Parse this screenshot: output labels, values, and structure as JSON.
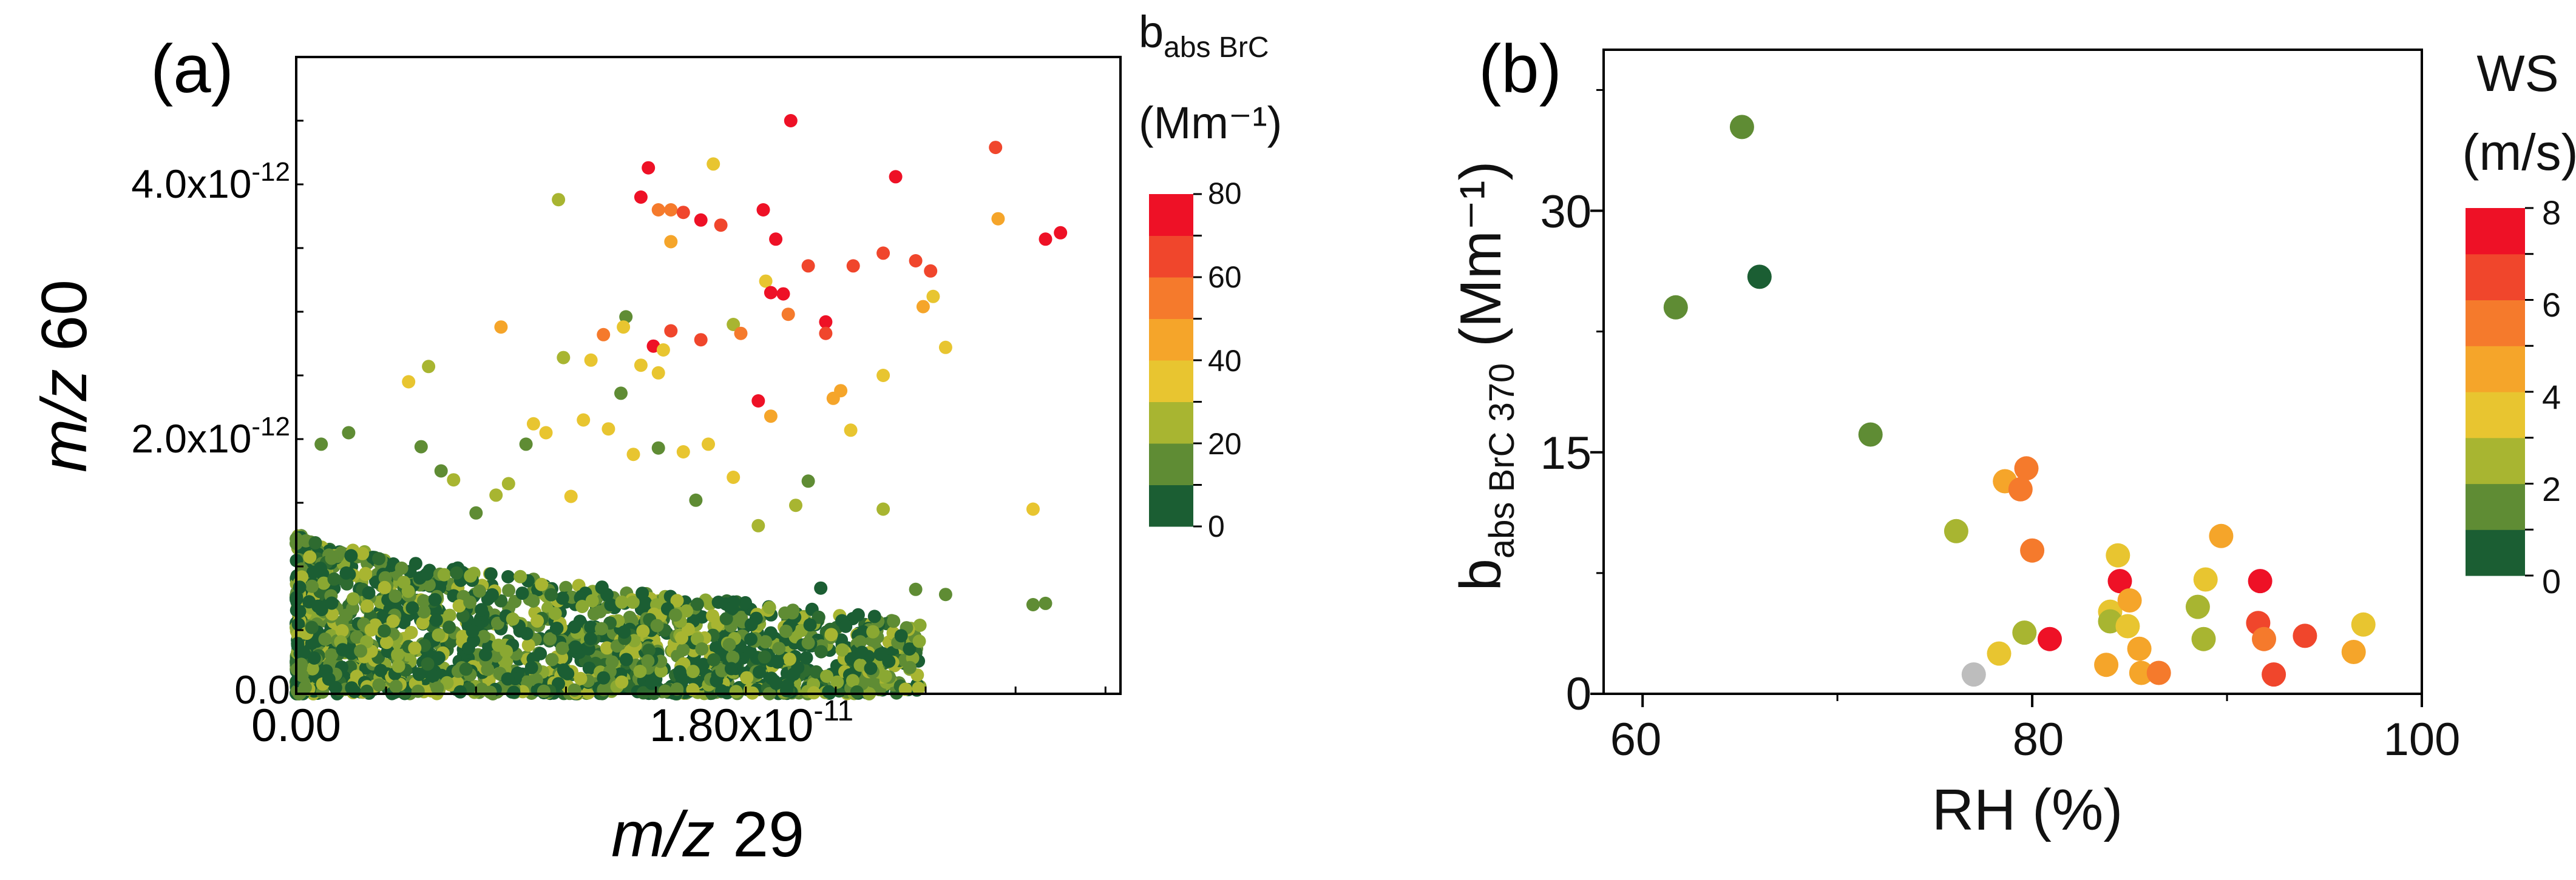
{
  "chart_data": [
    {
      "type": "scatter",
      "panel_label": "(a)",
      "xlabel": {
        "italic": "m/z",
        "rest": " 29"
      },
      "ylabel": {
        "italic": "m/z",
        "rest": " 60"
      },
      "xlim": [
        0,
        3.3e-11
      ],
      "ylim": [
        0,
        5e-12
      ],
      "xticks": [
        {
          "value": 0,
          "label": "0.00",
          "exp": ""
        },
        {
          "value": 1.8e-11,
          "label": "1.80x10",
          "exp": "-11"
        }
      ],
      "yticks": [
        {
          "value": 0,
          "label": "0.0",
          "exp": ""
        },
        {
          "value": 2e-12,
          "label": "2.0x10",
          "exp": "-12"
        },
        {
          "value": 4e-12,
          "label": "4.0x10",
          "exp": "-12"
        }
      ],
      "colorbar": {
        "title": "b",
        "title_sub": "abs BrC",
        "unit": "(Mm⁻¹)",
        "min": 0,
        "max": 80,
        "ticks": [
          "80",
          "60",
          "40",
          "20",
          "0"
        ],
        "levels": [
          "#1b5e33",
          "#5f8c34",
          "#a8b531",
          "#e8c530",
          "#f5a52a",
          "#f57a2c",
          "#f0462c",
          "#ee1126"
        ]
      },
      "dense_cluster": {
        "note": "approximately 1800 overlapping points concentrated near the origin",
        "n": 1800,
        "x_range": [
          0,
          2.5e-11
        ],
        "y_range": [
          0,
          1.3e-12
        ]
      },
      "points": [
        {
          "x": 1.98e-11,
          "y": 4.5e-12,
          "c": 70
        },
        {
          "x": 1.41e-11,
          "y": 4.13e-12,
          "c": 75
        },
        {
          "x": 1.67e-11,
          "y": 4.16e-12,
          "c": 35
        },
        {
          "x": 2.4e-11,
          "y": 4.06e-12,
          "c": 78
        },
        {
          "x": 2.8e-11,
          "y": 4.29e-12,
          "c": 60
        },
        {
          "x": 1.38e-11,
          "y": 3.9e-12,
          "c": 72
        },
        {
          "x": 1.05e-11,
          "y": 3.88e-12,
          "c": 20
        },
        {
          "x": 1.45e-11,
          "y": 3.8e-12,
          "c": 55
        },
        {
          "x": 1.5e-11,
          "y": 3.8e-12,
          "c": 55
        },
        {
          "x": 1.55e-11,
          "y": 3.78e-12,
          "c": 65
        },
        {
          "x": 1.62e-11,
          "y": 3.72e-12,
          "c": 70
        },
        {
          "x": 1.7e-11,
          "y": 3.68e-12,
          "c": 65
        },
        {
          "x": 1.87e-11,
          "y": 3.8e-12,
          "c": 72
        },
        {
          "x": 1.5e-11,
          "y": 3.55e-12,
          "c": 40
        },
        {
          "x": 1.92e-11,
          "y": 3.57e-12,
          "c": 75
        },
        {
          "x": 2.05e-11,
          "y": 3.36e-12,
          "c": 60
        },
        {
          "x": 2.23e-11,
          "y": 3.36e-12,
          "c": 65
        },
        {
          "x": 2.35e-11,
          "y": 3.46e-12,
          "c": 65
        },
        {
          "x": 2.48e-11,
          "y": 3.4e-12,
          "c": 65
        },
        {
          "x": 2.54e-11,
          "y": 3.32e-12,
          "c": 62
        },
        {
          "x": 2.81e-11,
          "y": 3.73e-12,
          "c": 45
        },
        {
          "x": 3e-11,
          "y": 3.57e-12,
          "c": 70
        },
        {
          "x": 3.06e-11,
          "y": 3.62e-12,
          "c": 75
        },
        {
          "x": 1.88e-11,
          "y": 3.24e-12,
          "c": 35
        },
        {
          "x": 1.9e-11,
          "y": 3.15e-12,
          "c": 70
        },
        {
          "x": 1.95e-11,
          "y": 3.14e-12,
          "c": 75
        },
        {
          "x": 2.55e-11,
          "y": 3.12e-12,
          "c": 30
        },
        {
          "x": 2.51e-11,
          "y": 3.04e-12,
          "c": 40
        },
        {
          "x": 1.97e-11,
          "y": 2.98e-12,
          "c": 55
        },
        {
          "x": 2.12e-11,
          "y": 2.92e-12,
          "c": 70
        },
        {
          "x": 2.12e-11,
          "y": 2.83e-12,
          "c": 65
        },
        {
          "x": 2.6e-11,
          "y": 2.72e-12,
          "c": 38
        },
        {
          "x": 1.32e-11,
          "y": 2.96e-12,
          "c": 10
        },
        {
          "x": 1.31e-11,
          "y": 2.88e-12,
          "c": 30
        },
        {
          "x": 1.23e-11,
          "y": 2.82e-12,
          "c": 55
        },
        {
          "x": 1.5e-11,
          "y": 2.85e-12,
          "c": 60
        },
        {
          "x": 1.62e-11,
          "y": 2.78e-12,
          "c": 65
        },
        {
          "x": 1.75e-11,
          "y": 2.9e-12,
          "c": 25
        },
        {
          "x": 1.78e-11,
          "y": 2.83e-12,
          "c": 50
        },
        {
          "x": 1.07e-11,
          "y": 2.64e-12,
          "c": 20
        },
        {
          "x": 1.18e-11,
          "y": 2.62e-12,
          "c": 30
        },
        {
          "x": 1.43e-11,
          "y": 2.73e-12,
          "c": 75
        },
        {
          "x": 1.47e-11,
          "y": 2.7e-12,
          "c": 38
        },
        {
          "x": 1.38e-11,
          "y": 2.58e-12,
          "c": 38
        },
        {
          "x": 1.45e-11,
          "y": 2.52e-12,
          "c": 30
        },
        {
          "x": 8.2e-12,
          "y": 2.88e-12,
          "c": 40
        },
        {
          "x": 2.35e-11,
          "y": 2.5e-12,
          "c": 30
        },
        {
          "x": 2.18e-11,
          "y": 2.38e-12,
          "c": 40
        },
        {
          "x": 1e-12,
          "y": 1.96e-12,
          "c": 15
        },
        {
          "x": 2.1e-12,
          "y": 2.05e-12,
          "c": 12
        },
        {
          "x": 4.5e-12,
          "y": 2.45e-12,
          "c": 35
        },
        {
          "x": 5e-12,
          "y": 1.94e-12,
          "c": 15
        },
        {
          "x": 5.3e-12,
          "y": 2.57e-12,
          "c": 20
        },
        {
          "x": 5.8e-12,
          "y": 1.75e-12,
          "c": 12
        },
        {
          "x": 6.3e-12,
          "y": 1.68e-12,
          "c": 20
        },
        {
          "x": 8e-12,
          "y": 1.56e-12,
          "c": 20
        },
        {
          "x": 9.2e-12,
          "y": 1.96e-12,
          "c": 12
        },
        {
          "x": 9.5e-12,
          "y": 2.12e-12,
          "c": 35
        },
        {
          "x": 1e-11,
          "y": 2.05e-12,
          "c": 30
        },
        {
          "x": 1.15e-11,
          "y": 2.15e-12,
          "c": 30
        },
        {
          "x": 1.25e-11,
          "y": 2.08e-12,
          "c": 30
        },
        {
          "x": 1.3e-11,
          "y": 2.36e-12,
          "c": 10
        },
        {
          "x": 1.35e-11,
          "y": 1.88e-12,
          "c": 32
        },
        {
          "x": 1.45e-11,
          "y": 1.93e-12,
          "c": 15
        },
        {
          "x": 1.55e-11,
          "y": 1.9e-12,
          "c": 38
        },
        {
          "x": 1.65e-11,
          "y": 1.96e-12,
          "c": 32
        },
        {
          "x": 1.75e-11,
          "y": 1.7e-12,
          "c": 35
        },
        {
          "x": 1.85e-11,
          "y": 2.3e-12,
          "c": 70
        },
        {
          "x": 1.9e-11,
          "y": 2.18e-12,
          "c": 40
        },
        {
          "x": 2.15e-11,
          "y": 2.32e-12,
          "c": 40
        },
        {
          "x": 2.22e-11,
          "y": 2.07e-12,
          "c": 35
        },
        {
          "x": 2.05e-11,
          "y": 1.67e-12,
          "c": 12
        },
        {
          "x": 2e-11,
          "y": 1.48e-12,
          "c": 25
        },
        {
          "x": 1.6e-11,
          "y": 1.52e-12,
          "c": 15
        },
        {
          "x": 1.1e-11,
          "y": 1.55e-12,
          "c": 35
        },
        {
          "x": 8.5e-12,
          "y": 1.65e-12,
          "c": 25
        },
        {
          "x": 7.2e-12,
          "y": 1.42e-12,
          "c": 15
        },
        {
          "x": 1.85e-11,
          "y": 1.32e-12,
          "c": 25
        },
        {
          "x": 2.35e-11,
          "y": 1.45e-12,
          "c": 20
        },
        {
          "x": 2.95e-11,
          "y": 1.45e-12,
          "c": 30
        },
        {
          "x": 3e-11,
          "y": 7.1e-13,
          "c": 12
        },
        {
          "x": 2.95e-11,
          "y": 7e-13,
          "c": 12
        },
        {
          "x": 2.6e-11,
          "y": 7.8e-13,
          "c": 12
        },
        {
          "x": 2.48e-11,
          "y": 8.2e-13,
          "c": 10
        },
        {
          "x": 2.1e-11,
          "y": 8.3e-13,
          "c": 8
        },
        {
          "x": 2.2e-11,
          "y": 5.3e-13,
          "c": 5
        },
        {
          "x": 2.3e-11,
          "y": 2e-13,
          "c": 5
        },
        {
          "x": 2.05e-11,
          "y": 4e-13,
          "c": 12
        },
        {
          "x": 2.25e-11,
          "y": 6.2e-13,
          "c": 8
        }
      ]
    },
    {
      "type": "scatter",
      "panel_label": "(b)",
      "xlabel": "RH (%)",
      "ylabel": {
        "base": "b",
        "sub": "abs BrC 370",
        "unit": " (Mm⁻¹)"
      },
      "xlim": [
        58,
        100
      ],
      "ylim": [
        0,
        40
      ],
      "xticks": [
        {
          "value": 60,
          "label": "60"
        },
        {
          "value": 80,
          "label": "80"
        },
        {
          "value": 100,
          "label": "100"
        }
      ],
      "yticks": [
        {
          "value": 0,
          "label": "0"
        },
        {
          "value": 15,
          "label": "15"
        },
        {
          "value": 30,
          "label": "30"
        }
      ],
      "colorbar": {
        "title": "WS",
        "unit": "(m/s)",
        "min": 0,
        "max": 8,
        "ticks": [
          "8",
          "6",
          "4",
          "2",
          "0"
        ],
        "levels": [
          "#1b5e33",
          "#5f8c34",
          "#a8b531",
          "#e8c530",
          "#f5a52a",
          "#f57a2c",
          "#f0462c",
          "#ee1126"
        ]
      },
      "points": [
        {
          "x": 65.1,
          "y": 35.2,
          "c": 1.5
        },
        {
          "x": 61.7,
          "y": 24.0,
          "c": 1.4
        },
        {
          "x": 66.0,
          "y": 25.9,
          "c": 0.4
        },
        {
          "x": 71.7,
          "y": 16.1,
          "c": 1.4
        },
        {
          "x": 76.1,
          "y": 10.1,
          "c": 2.6
        },
        {
          "x": 78.6,
          "y": 13.2,
          "c": 4.6
        },
        {
          "x": 79.4,
          "y": 12.7,
          "c": 5.6
        },
        {
          "x": 79.7,
          "y": 14.0,
          "c": 5.6
        },
        {
          "x": 80.0,
          "y": 8.9,
          "c": 5.3
        },
        {
          "x": 79.6,
          "y": 3.8,
          "c": 2.7
        },
        {
          "x": 78.3,
          "y": 2.5,
          "c": 3.5
        },
        {
          "x": 80.9,
          "y": 3.4,
          "c": 7.6
        },
        {
          "x": 84.4,
          "y": 8.6,
          "c": 3.5
        },
        {
          "x": 84.5,
          "y": 7.0,
          "c": 7.6
        },
        {
          "x": 84.0,
          "y": 5.1,
          "c": 3.5
        },
        {
          "x": 84.0,
          "y": 4.5,
          "c": 2.5
        },
        {
          "x": 85.0,
          "y": 5.8,
          "c": 4.3
        },
        {
          "x": 84.9,
          "y": 4.2,
          "c": 3.5
        },
        {
          "x": 83.8,
          "y": 1.8,
          "c": 4.3
        },
        {
          "x": 85.5,
          "y": 2.8,
          "c": 4.4
        },
        {
          "x": 85.6,
          "y": 1.3,
          "c": 4.6
        },
        {
          "x": 86.5,
          "y": 1.3,
          "c": 5.2
        },
        {
          "x": 88.5,
          "y": 5.4,
          "c": 2.7
        },
        {
          "x": 88.9,
          "y": 7.1,
          "c": 3.8
        },
        {
          "x": 89.7,
          "y": 9.8,
          "c": 4.5
        },
        {
          "x": 88.8,
          "y": 3.4,
          "c": 2.7
        },
        {
          "x": 91.7,
          "y": 7.0,
          "c": 7.6
        },
        {
          "x": 91.6,
          "y": 4.4,
          "c": 6.4
        },
        {
          "x": 91.9,
          "y": 3.4,
          "c": 5.2
        },
        {
          "x": 92.4,
          "y": 1.2,
          "c": 6.4
        },
        {
          "x": 94.0,
          "y": 3.6,
          "c": 6.5
        },
        {
          "x": 96.5,
          "y": 2.6,
          "c": 4.5
        },
        {
          "x": 97.0,
          "y": 4.3,
          "c": 3.4
        },
        {
          "x": 77.0,
          "y": 1.2,
          "c": null
        }
      ]
    }
  ]
}
